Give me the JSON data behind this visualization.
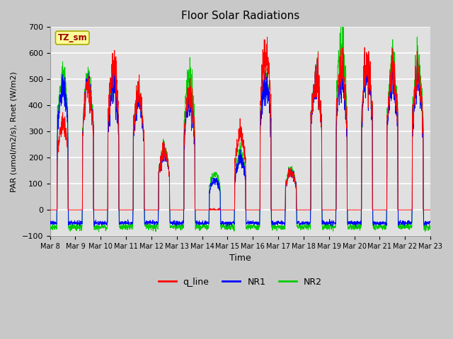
{
  "title": "Floor Solar Radiations",
  "xlabel": "Time",
  "ylabel": "PAR (umol/m2/s), Rnet (W/m2)",
  "ylim": [
    -100,
    700
  ],
  "yticks": [
    -100,
    0,
    100,
    200,
    300,
    400,
    500,
    600,
    700
  ],
  "bg_color": "#e0e0e0",
  "fig_bg": "#c8c8c8",
  "grid_color": "white",
  "line_colors": {
    "q_line": "#ff0000",
    "NR1": "#0000ff",
    "NR2": "#00cc00"
  },
  "tz_label": "TZ_sm",
  "tz_box_color": "#ffff99",
  "tz_text_color": "#990000",
  "n_days": 15,
  "start_day": 8,
  "samples_per_day": 144,
  "figsize": [
    6.4,
    4.8
  ],
  "dpi": 100,
  "night_NR1": -50,
  "night_NR2": -65,
  "day_peaks": {
    "q_line": [
      340,
      480,
      560,
      440,
      225,
      440,
      0,
      295,
      610,
      145,
      505,
      555,
      565,
      530,
      520
    ],
    "NR1": [
      480,
      490,
      490,
      415,
      220,
      410,
      115,
      195,
      490,
      145,
      500,
      505,
      540,
      500,
      490
    ],
    "NR2": [
      520,
      510,
      510,
      440,
      230,
      505,
      140,
      215,
      500,
      155,
      505,
      645,
      545,
      560,
      560
    ]
  }
}
